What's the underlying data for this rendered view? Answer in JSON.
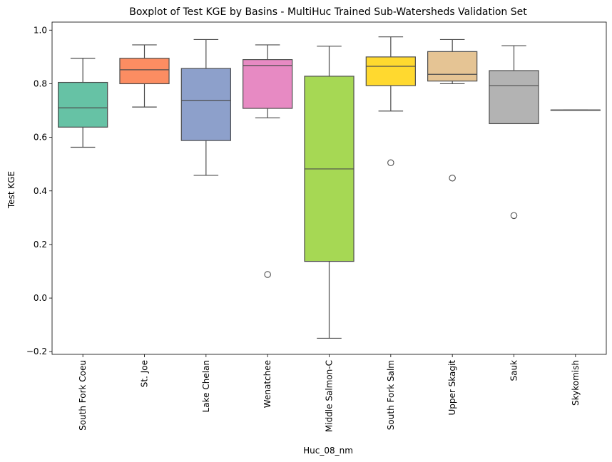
{
  "chart_data": {
    "type": "boxplot",
    "title": "Boxplot of Test KGE by Basins - MultiHuc Trained Sub-Watersheds Validation Set",
    "xlabel": "Huc_08_nm",
    "ylabel": "Test KGE",
    "ylim": [
      -0.21,
      1.03
    ],
    "yticks": [
      -0.2,
      0.0,
      0.2,
      0.4,
      0.6,
      0.8,
      1.0
    ],
    "ytick_labels": [
      "−0.2",
      "0.0",
      "0.2",
      "0.4",
      "0.6",
      "0.8",
      "1.0"
    ],
    "grid": false,
    "categories": [
      "South Fork Coeu",
      "St. Joe",
      "Lake Chelan",
      "Wenatchee",
      "Middle Salmon-C",
      "South Fork Salm",
      "Upper Skagit",
      "Sauk",
      "Skykomish"
    ],
    "boxes": [
      {
        "q1": 0.638,
        "median": 0.71,
        "q3": 0.805,
        "whisker_low": 0.563,
        "whisker_high": 0.895,
        "outliers": [],
        "color": "#66c2a5"
      },
      {
        "q1": 0.8,
        "median": 0.852,
        "q3": 0.895,
        "whisker_low": 0.713,
        "whisker_high": 0.945,
        "outliers": [],
        "color": "#fc8d62"
      },
      {
        "q1": 0.588,
        "median": 0.738,
        "q3": 0.857,
        "whisker_low": 0.458,
        "whisker_high": 0.965,
        "outliers": [],
        "color": "#8da0cb"
      },
      {
        "q1": 0.708,
        "median": 0.868,
        "q3": 0.89,
        "whisker_low": 0.673,
        "whisker_high": 0.945,
        "outliers": [
          0.088
        ],
        "color": "#e78ac3"
      },
      {
        "q1": 0.137,
        "median": 0.482,
        "q3": 0.828,
        "whisker_low": -0.15,
        "whisker_high": 0.94,
        "outliers": [],
        "color": "#a6d854"
      },
      {
        "q1": 0.793,
        "median": 0.865,
        "q3": 0.9,
        "whisker_low": 0.698,
        "whisker_high": 0.975,
        "outliers": [
          0.505
        ],
        "color": "#ffd92f"
      },
      {
        "q1": 0.81,
        "median": 0.835,
        "q3": 0.92,
        "whisker_low": 0.8,
        "whisker_high": 0.965,
        "outliers": [
          0.448
        ],
        "color": "#e5c494"
      },
      {
        "q1": 0.651,
        "median": 0.793,
        "q3": 0.849,
        "whisker_low": 0.651,
        "whisker_high": 0.942,
        "outliers": [
          0.308
        ],
        "color": "#b3b3b3"
      },
      {
        "q1": 0.702,
        "median": 0.702,
        "q3": 0.702,
        "whisker_low": 0.702,
        "whisker_high": 0.702,
        "outliers": [],
        "color": "#b3b3b3"
      }
    ]
  }
}
